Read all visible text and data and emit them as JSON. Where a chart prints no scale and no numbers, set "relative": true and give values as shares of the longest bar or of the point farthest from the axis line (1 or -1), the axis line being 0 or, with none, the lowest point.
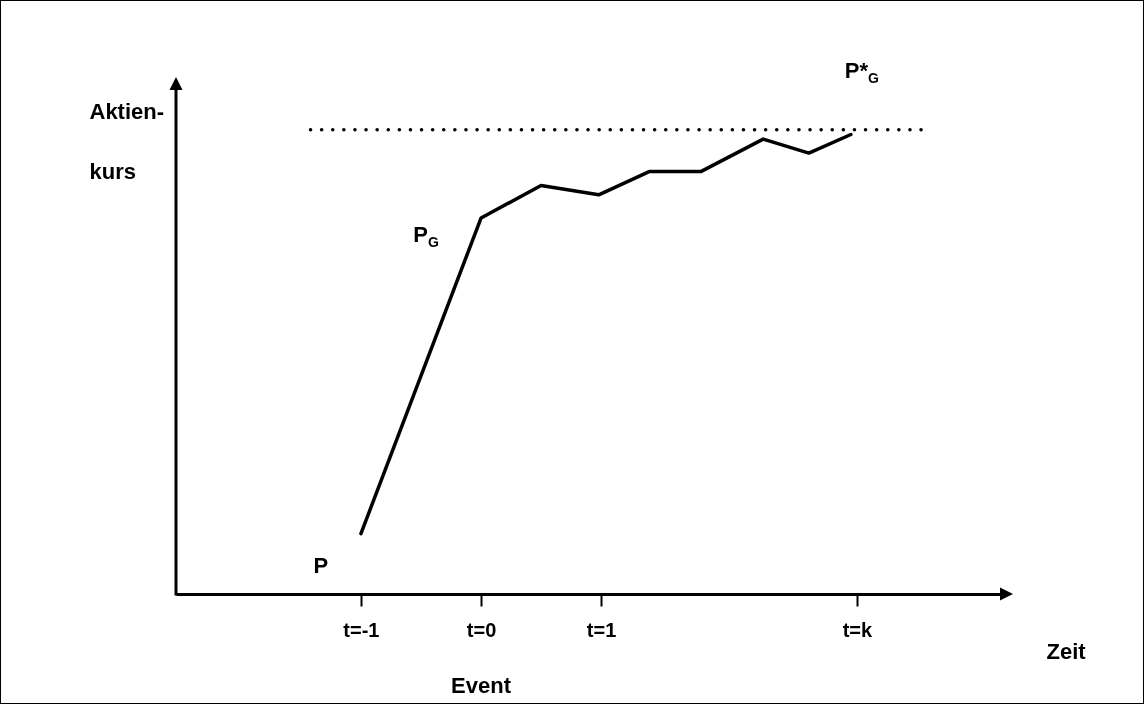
{
  "chart_data": {
    "type": "line",
    "relative": true,
    "ylabel": "Aktien-\nkurs",
    "xlabel": "Zeit",
    "xlim": [
      -2.54,
      4.33
    ],
    "xticks": [
      {
        "value": -1,
        "label": "t=-1"
      },
      {
        "value": 0,
        "label": "t=0"
      },
      {
        "value": 1,
        "label": "t=1"
      },
      {
        "value": 3.13,
        "label": "t=k"
      }
    ],
    "marker": "none",
    "grid": false,
    "series": [
      {
        "color": "#000000",
        "line_style": "solid",
        "x": [
          -1,
          0,
          0.5,
          0.98,
          1.4,
          1.83,
          2.35,
          2.73,
          3.08
        ],
        "values": [
          0.13,
          0.81,
          0.88,
          0.86,
          0.91,
          0.91,
          0.98,
          0.95,
          0.99
        ]
      },
      {
        "color": "#000000",
        "line_style": "dotted",
        "x": [
          -1.42,
          3.67
        ],
        "values": [
          1,
          1
        ]
      }
    ],
    "annotations": [
      {
        "text": "P",
        "x": -1,
        "y": 0.13
      },
      {
        "text": "P$_{G}$",
        "x": 0,
        "y": 0.81
      },
      {
        "text": "P*$_{G}$",
        "x": 3.13,
        "y": 1
      },
      "Event"
    ]
  }
}
